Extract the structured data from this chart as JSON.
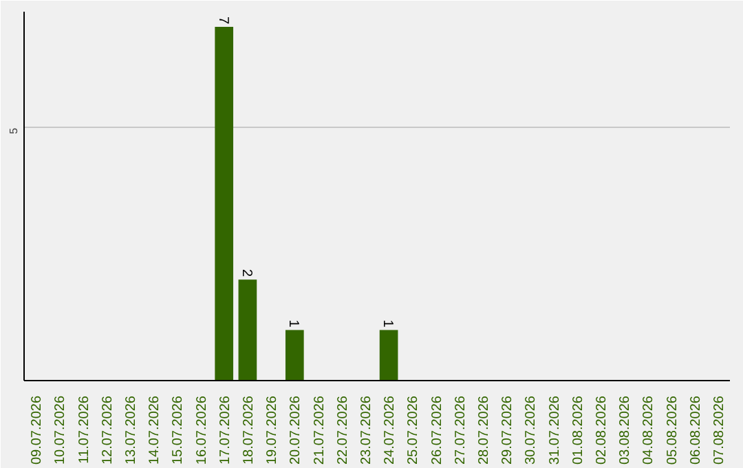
{
  "chart_data": {
    "type": "bar",
    "categories": [
      "09.07.2026",
      "10.07.2026",
      "11.07.2026",
      "12.07.2026",
      "13.07.2026",
      "14.07.2026",
      "15.07.2026",
      "16.07.2026",
      "17.07.2026",
      "18.07.2026",
      "19.07.2026",
      "20.07.2026",
      "21.07.2026",
      "22.07.2026",
      "23.07.2026",
      "24.07.2026",
      "25.07.2026",
      "26.07.2026",
      "27.07.2026",
      "28.07.2026",
      "29.07.2026",
      "30.07.2026",
      "31.07.2026",
      "01.08.2026",
      "02.08.2026",
      "03.08.2026",
      "04.08.2026",
      "05.08.2026",
      "06.08.2026",
      "07.08.2026"
    ],
    "values": [
      0,
      0,
      0,
      0,
      0,
      0,
      0,
      0,
      7,
      2,
      0,
      1,
      0,
      0,
      0,
      1,
      0,
      0,
      0,
      0,
      0,
      0,
      0,
      0,
      0,
      0,
      0,
      0,
      0,
      0
    ],
    "value_labels": [
      null,
      null,
      null,
      null,
      null,
      null,
      null,
      null,
      "7",
      "2",
      null,
      "1",
      null,
      null,
      null,
      "1",
      null,
      null,
      null,
      null,
      null,
      null,
      null,
      null,
      null,
      null,
      null,
      null,
      null,
      null
    ],
    "color": "#336600",
    "ylim": [
      0,
      7.3
    ],
    "yticks": [
      5
    ],
    "grid": "y"
  }
}
